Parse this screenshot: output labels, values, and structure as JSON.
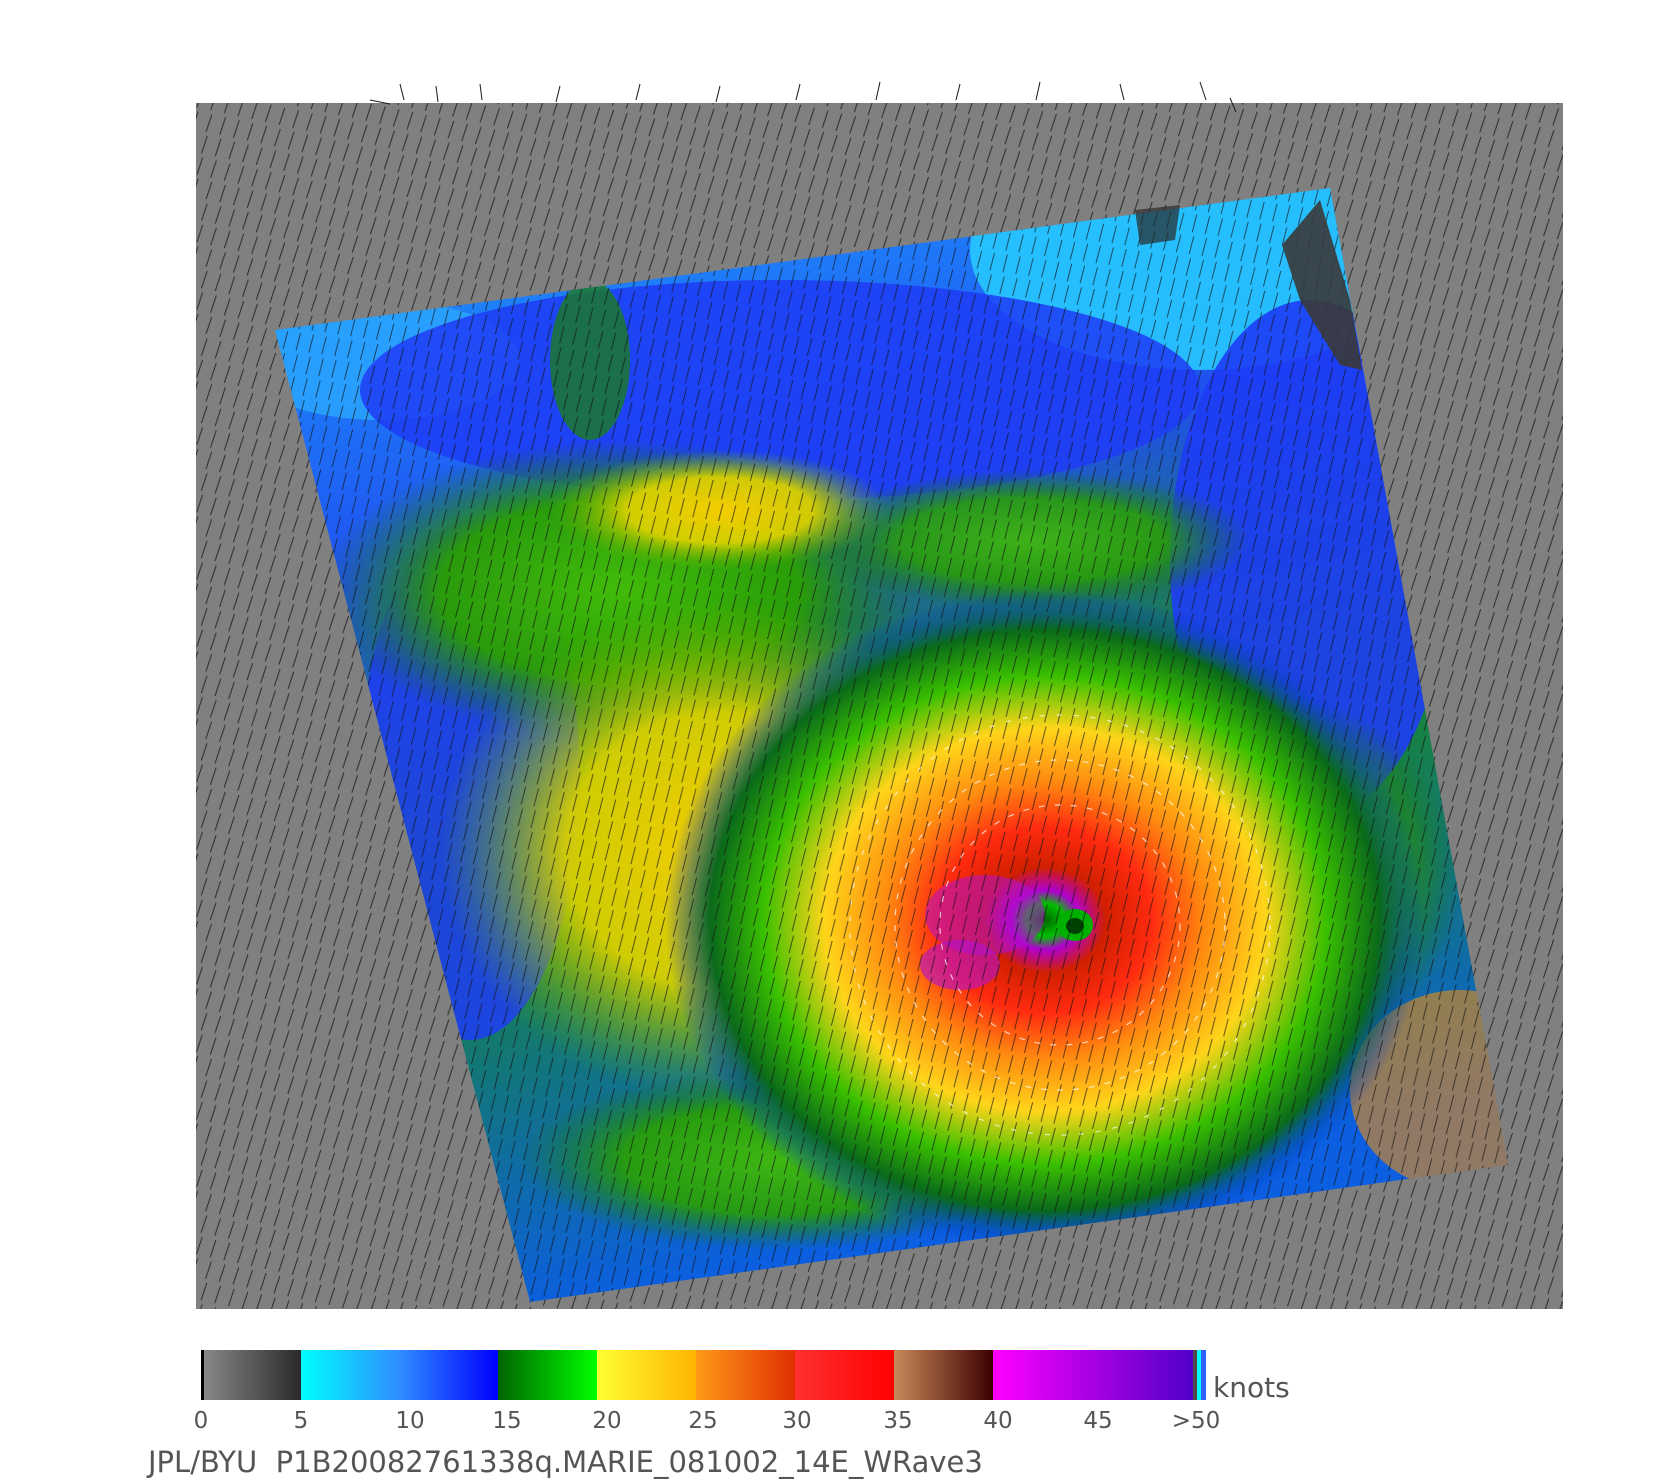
{
  "caption": "JPL/BYU  P1B20082761338q.MARIE_081002_14E_WRave3",
  "colorbar": {
    "units": "knots",
    "ticks": [
      "0",
      "5",
      "10",
      "15",
      "20",
      "25",
      "30",
      "35",
      "40",
      "45",
      ">50"
    ],
    "segments": [
      {
        "from": 0,
        "to": 5,
        "start_color": "#8a8a8a",
        "end_color": "#2a2a2a"
      },
      {
        "from": 5,
        "to": 10,
        "start_color": "#00ffff",
        "end_color": "#2f8cff"
      },
      {
        "from": 10,
        "to": 15,
        "start_color": "#2f8cff",
        "end_color": "#0000ff"
      },
      {
        "from": 15,
        "to": 20,
        "start_color": "#006400",
        "end_color": "#00ff00"
      },
      {
        "from": 20,
        "to": 25,
        "start_color": "#ffff33",
        "end_color": "#ffb400"
      },
      {
        "from": 25,
        "to": 30,
        "start_color": "#ff9a1a",
        "end_color": "#e03000"
      },
      {
        "from": 30,
        "to": 35,
        "start_color": "#ff3030",
        "end_color": "#ff0000"
      },
      {
        "from": 35,
        "to": 40,
        "start_color": "#c88a5a",
        "end_color": "#3c0000"
      },
      {
        "from": 40,
        "to": 50,
        "start_color": "#ff00ff",
        "end_color": "#5000c8"
      }
    ]
  },
  "map": {
    "background_color": "#808080",
    "storm_name": "MARIE",
    "storm_id": "14E"
  }
}
